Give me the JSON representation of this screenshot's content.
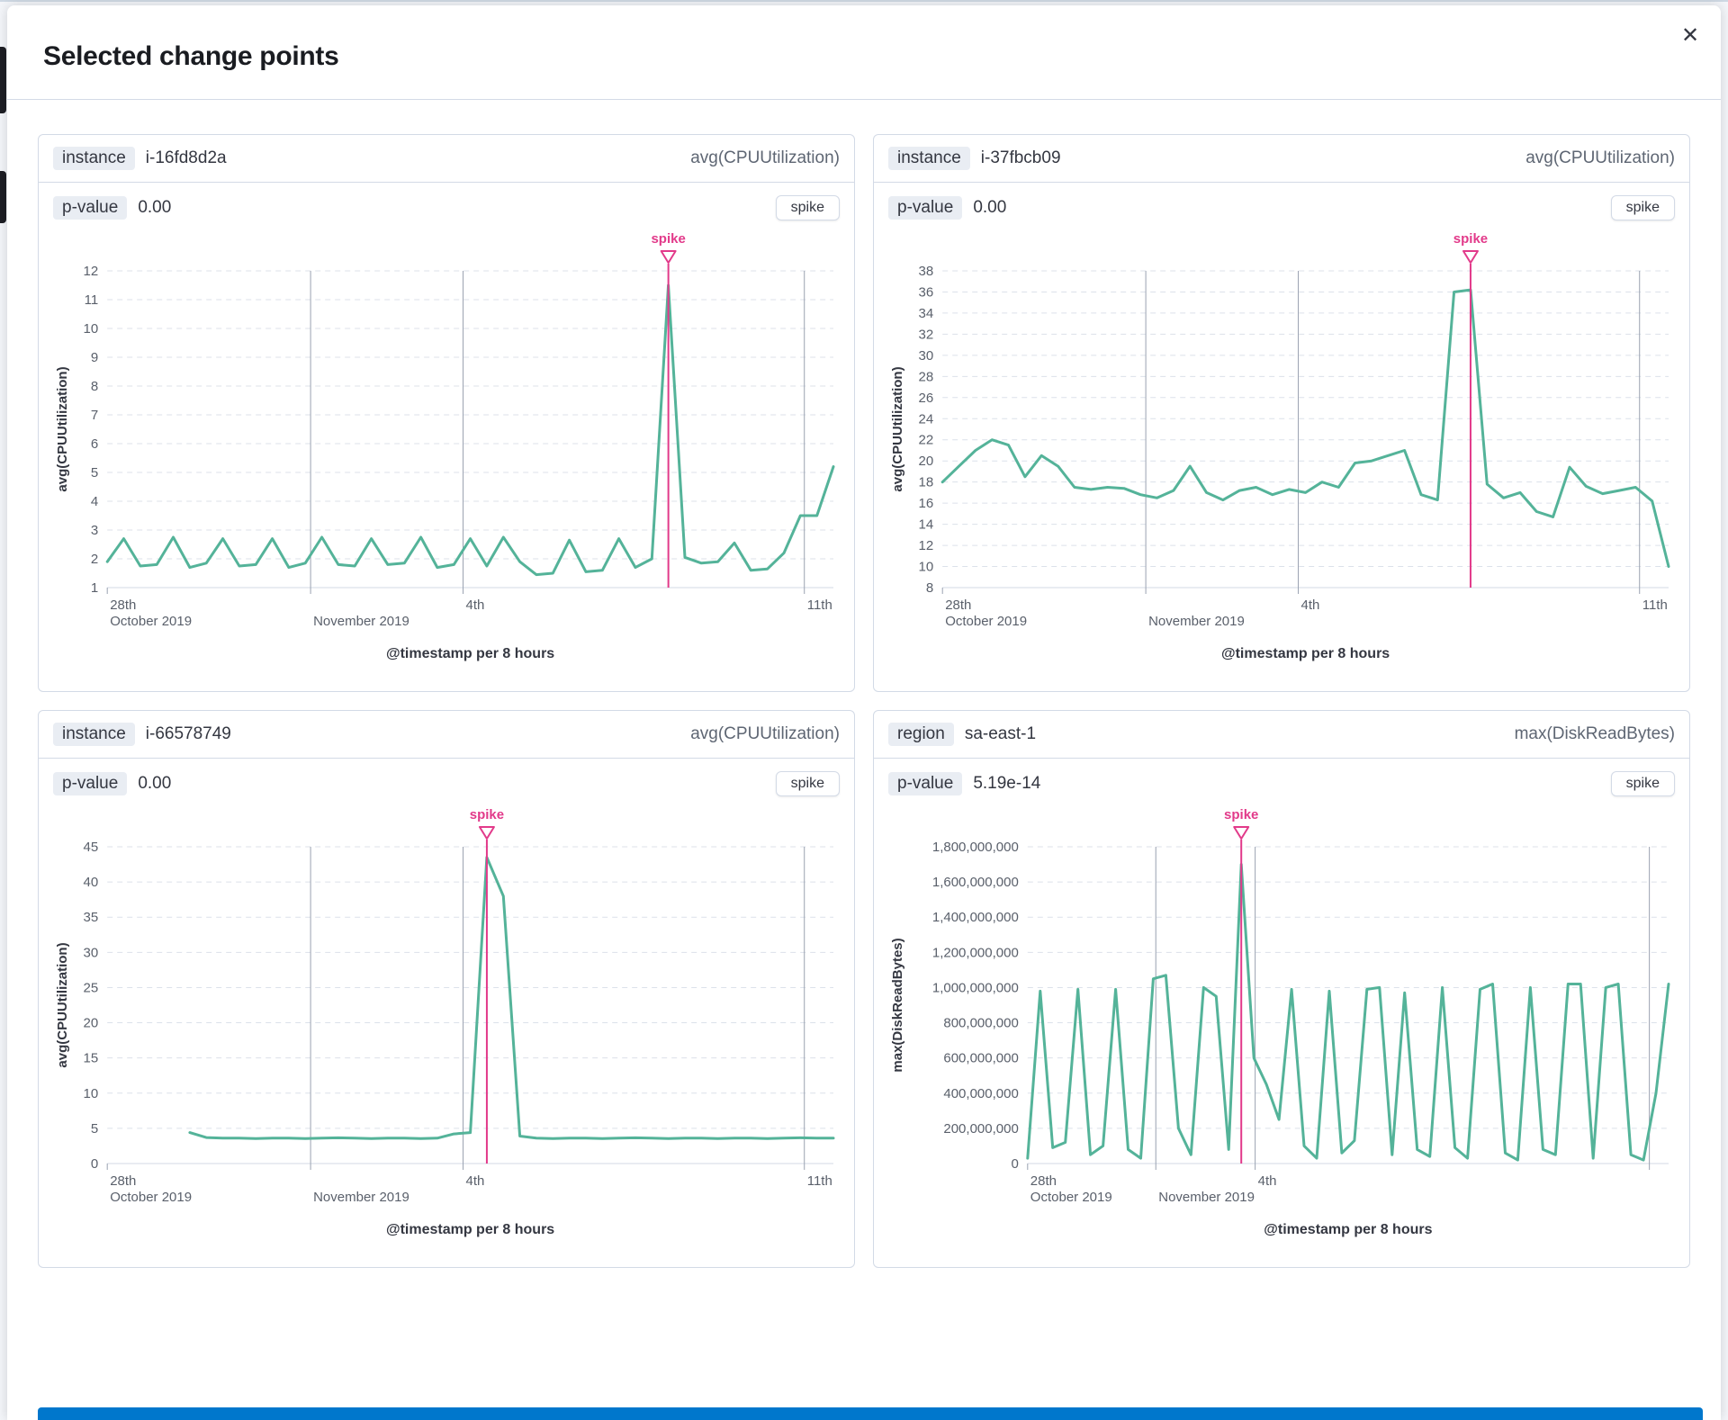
{
  "modal": {
    "title": "Selected change points",
    "close_icon": "✕"
  },
  "page": {
    "footer_bar_color": "#0077cc"
  },
  "panels": [
    {
      "key_label": "instance",
      "key_value": "i-16fd8d2a",
      "metric": "avg(CPUUtilization)",
      "p_label": "p-value",
      "p_value": "0.00",
      "type_button": "spike",
      "chart_index": 0
    },
    {
      "key_label": "instance",
      "key_value": "i-37fbcb09",
      "metric": "avg(CPUUtilization)",
      "p_label": "p-value",
      "p_value": "0.00",
      "type_button": "spike",
      "chart_index": 1
    },
    {
      "key_label": "instance",
      "key_value": "i-66578749",
      "metric": "avg(CPUUtilization)",
      "p_label": "p-value",
      "p_value": "0.00",
      "type_button": "spike",
      "chart_index": 2
    },
    {
      "key_label": "region",
      "key_value": "sa-east-1",
      "metric": "max(DiskReadBytes)",
      "p_label": "p-value",
      "p_value": "5.19e-14",
      "type_button": "spike",
      "chart_index": 3
    }
  ],
  "chart_data": [
    {
      "type": "line",
      "title": "instance i-16fd8d2a avg(CPUUtilization)",
      "xlabel": "@timestamp per 8 hours",
      "ylabel": "avg(CPUUtilization)",
      "ylim": [
        1,
        12
      ],
      "ystep": 1,
      "comma_labels": false,
      "grid": "dashed-horizontal",
      "series_color": "#54b399",
      "annotation": {
        "label": "spike",
        "index": 34,
        "color": "#e23a8a"
      },
      "xticks": [
        {
          "frac": 0.0,
          "line1": "28th",
          "line2": "October 2019"
        },
        {
          "frac": 0.28,
          "line1": "",
          "line2": "November 2019"
        },
        {
          "frac": 0.49,
          "line1": "4th",
          "line2": ""
        },
        {
          "frac": 0.96,
          "line1": "11th",
          "line2": ""
        }
      ],
      "values": [
        1.9,
        2.7,
        1.75,
        1.8,
        2.75,
        1.7,
        1.85,
        2.7,
        1.75,
        1.8,
        2.7,
        1.7,
        1.85,
        2.75,
        1.8,
        1.75,
        2.7,
        1.8,
        1.85,
        2.75,
        1.7,
        1.8,
        2.7,
        1.75,
        2.75,
        1.9,
        1.45,
        1.5,
        2.65,
        1.55,
        1.6,
        2.7,
        1.7,
        2.0,
        11.5,
        2.05,
        1.85,
        1.9,
        2.55,
        1.6,
        1.65,
        2.2,
        3.5,
        3.5,
        5.2
      ]
    },
    {
      "type": "line",
      "title": "instance i-37fbcb09 avg(CPUUtilization)",
      "xlabel": "@timestamp per 8 hours",
      "ylabel": "avg(CPUUtilization)",
      "ylim": [
        8,
        38
      ],
      "ystep": 2,
      "comma_labels": false,
      "grid": "dashed-horizontal",
      "series_color": "#54b399",
      "annotation": {
        "label": "spike",
        "index": 32,
        "color": "#e23a8a"
      },
      "xticks": [
        {
          "frac": 0.0,
          "line1": "28th",
          "line2": "October 2019"
        },
        {
          "frac": 0.28,
          "line1": "",
          "line2": "November 2019"
        },
        {
          "frac": 0.49,
          "line1": "4th",
          "line2": ""
        },
        {
          "frac": 0.96,
          "line1": "11th",
          "line2": ""
        }
      ],
      "values": [
        18,
        19.5,
        21,
        22,
        21.5,
        18.5,
        20.5,
        19.5,
        17.5,
        17.3,
        17.5,
        17.4,
        16.8,
        16.5,
        17.2,
        19.5,
        17,
        16.3,
        17.2,
        17.5,
        16.8,
        17.3,
        17,
        18,
        17.5,
        19.8,
        20,
        20.5,
        21,
        16.8,
        16.3,
        36,
        36.2,
        17.8,
        16.5,
        17,
        15.2,
        14.7,
        19.4,
        17.6,
        16.9,
        17.2,
        17.5,
        16.2,
        10
      ]
    },
    {
      "type": "line",
      "title": "instance i-66578749 avg(CPUUtilization)",
      "xlabel": "@timestamp per 8 hours",
      "ylabel": "avg(CPUUtilization)",
      "ylim": [
        0,
        45
      ],
      "ystep": 5,
      "comma_labels": false,
      "grid": "dashed-horizontal",
      "series_color": "#54b399",
      "annotation": {
        "label": "spike",
        "index": 23,
        "color": "#e23a8a"
      },
      "xticks": [
        {
          "frac": 0.0,
          "line1": "28th",
          "line2": "October 2019"
        },
        {
          "frac": 0.28,
          "line1": "",
          "line2": "November 2019"
        },
        {
          "frac": 0.49,
          "line1": "4th",
          "line2": ""
        },
        {
          "frac": 0.96,
          "line1": "11th",
          "line2": ""
        }
      ],
      "values": [
        null,
        null,
        null,
        null,
        null,
        4.4,
        3.7,
        3.6,
        3.6,
        3.55,
        3.6,
        3.6,
        3.55,
        3.6,
        3.65,
        3.6,
        3.55,
        3.6,
        3.6,
        3.55,
        3.6,
        4.2,
        4.4,
        43.5,
        38,
        3.9,
        3.6,
        3.55,
        3.6,
        3.6,
        3.55,
        3.6,
        3.65,
        3.6,
        3.55,
        3.6,
        3.6,
        3.55,
        3.6,
        3.6,
        3.55,
        3.6,
        3.65,
        3.6,
        3.6
      ]
    },
    {
      "type": "line",
      "title": "region sa-east-1 max(DiskReadBytes)",
      "xlabel": "@timestamp per 8 hours",
      "ylabel": "max(DiskReadBytes)",
      "ylim": [
        0,
        1800000000
      ],
      "ystep": 200000000,
      "comma_labels": true,
      "grid": "dashed-horizontal",
      "series_color": "#54b399",
      "annotation": {
        "label": "spike",
        "index": 17,
        "color": "#e23a8a"
      },
      "xticks": [
        {
          "frac": 0.0,
          "line1": "28th",
          "line2": "October 2019"
        },
        {
          "frac": 0.2,
          "line1": "",
          "line2": "November 2019"
        },
        {
          "frac": 0.355,
          "line1": "4th",
          "line2": ""
        },
        {
          "frac": 0.97,
          "line1": "",
          "line2": ""
        }
      ],
      "values": [
        30000000,
        980000000,
        90000000,
        120000000,
        990000000,
        50000000,
        100000000,
        990000000,
        80000000,
        30000000,
        1050000000,
        1070000000,
        200000000,
        50000000,
        1000000000,
        950000000,
        80000000,
        1700000000,
        600000000,
        450000000,
        250000000,
        990000000,
        100000000,
        30000000,
        980000000,
        60000000,
        130000000,
        990000000,
        1000000000,
        50000000,
        970000000,
        80000000,
        40000000,
        1000000000,
        90000000,
        30000000,
        990000000,
        1020000000,
        60000000,
        20000000,
        1000000000,
        80000000,
        50000000,
        1020000000,
        1020000000,
        30000000,
        1000000000,
        1020000000,
        50000000,
        20000000,
        400000000,
        1020000000
      ]
    }
  ]
}
